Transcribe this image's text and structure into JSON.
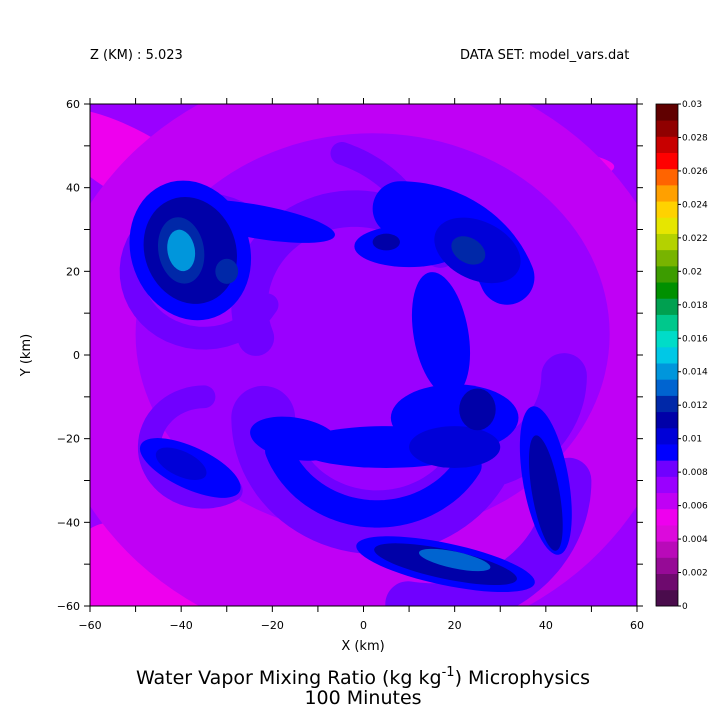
{
  "header": {
    "z_label": "Z (KM) : 5.023",
    "dataset_label": "DATA SET: model_vars.dat"
  },
  "chart_data": {
    "type": "heatmap",
    "title": "Water Vapor Mixing Ratio (kg kg",
    "title_exponent": "-1",
    "title_suffix": ") Microphysics",
    "subtitle": "100 Minutes",
    "xlabel": "X (km)",
    "ylabel": "Y (km)",
    "xlim": [
      -60,
      60
    ],
    "ylim": [
      -60,
      60
    ],
    "x_ticks": [
      -60,
      -40,
      -20,
      0,
      20,
      40,
      60
    ],
    "y_ticks": [
      -60,
      -40,
      -20,
      0,
      20,
      40,
      60
    ],
    "x_tick_labels": [
      "−60",
      "−40",
      "−20",
      "0",
      "20",
      "40",
      "60"
    ],
    "y_tick_labels": [
      "−60",
      "−40",
      "−20",
      "0",
      "20",
      "40",
      "60"
    ],
    "colorbar": {
      "min": 0,
      "max": 0.03,
      "step": 0.001,
      "tick_labels": [
        "0",
        "0.002",
        "0.004",
        "0.006",
        "0.008",
        "0.01",
        "0.012",
        "0.014",
        "0.016",
        "0.018",
        "0.02",
        "0.022",
        "0.024",
        "0.026",
        "0.028",
        "0.03"
      ],
      "colors": [
        "#4a0c4c",
        "#6e0a6e",
        "#960a96",
        "#b90ab9",
        "#dc0adc",
        "#ee00ee",
        "#c000f5",
        "#9a00ff",
        "#7000ff",
        "#0000ff",
        "#0000d8",
        "#0000a8",
        "#0028a8",
        "#0064d0",
        "#0096dc",
        "#00c8e6",
        "#00dcc8",
        "#00c88c",
        "#00a050",
        "#009000",
        "#3c9c00",
        "#78b400",
        "#b4d200",
        "#e6e600",
        "#ffd200",
        "#ffa000",
        "#ff6400",
        "#ff0000",
        "#c80000",
        "#900000",
        "#600000"
      ]
    },
    "features": [
      {
        "type": "ellipse",
        "cx": 0,
        "cy": 0,
        "rx": 70,
        "ry": 70,
        "rot": 0,
        "value": 0.006
      },
      {
        "type": "ellipse",
        "cx": 2,
        "cy": 5,
        "rx": 52,
        "ry": 48,
        "rot": 0,
        "value": 0.007
      },
      {
        "type": "ellipse",
        "cx": -8,
        "cy": 5,
        "rx": 36,
        "ry": 33,
        "rot": 20,
        "value": 0.0077
      },
      {
        "type": "ellipse",
        "cx": 10,
        "cy": 45,
        "rx": 45,
        "ry": 6,
        "rot": 0,
        "value": 0.0055
      },
      {
        "type": "ellipse",
        "cx": -50,
        "cy": 45,
        "rx": 22,
        "ry": 8,
        "rot": -30,
        "value": 0.0052
      },
      {
        "type": "ellipse",
        "cx": -30,
        "cy": -52,
        "rx": 45,
        "ry": 8,
        "rot": 10,
        "value": 0.0055
      },
      {
        "type": "ellipse",
        "cx": -55,
        "cy": -47,
        "rx": 8,
        "ry": 7,
        "rot": 0,
        "value": 0.0055
      },
      {
        "type": "ellipse",
        "cx": -52,
        "cy": 15,
        "rx": 3,
        "ry": 11,
        "rot": 5,
        "value": 0.0045
      },
      {
        "type": "ellipse",
        "cx": -52,
        "cy": 15,
        "rx": 6,
        "ry": 15,
        "rot": 5,
        "value": 0.0053
      },
      {
        "type": "ellipse",
        "cx": -10,
        "cy": 10,
        "rx": 22,
        "ry": 14,
        "rot": -30,
        "value": 0.0055
      },
      {
        "type": "ellipse",
        "cx": 40,
        "cy": 2,
        "rx": 7,
        "ry": 4,
        "rot": -35,
        "value": 0.0055
      },
      {
        "type": "ellipse",
        "cx": 28,
        "cy": -37,
        "rx": 10,
        "ry": 4,
        "rot": 15,
        "value": 0.0055
      },
      {
        "type": "ellipse",
        "cx": 30,
        "cy": 40,
        "rx": 25,
        "ry": 6,
        "rot": 0,
        "value": 0.0058
      },
      {
        "type": "ellipse",
        "cx": -38,
        "cy": 25,
        "rx": 13,
        "ry": 17,
        "rot": 20,
        "value": 0.009
      },
      {
        "type": "ellipse",
        "cx": -38,
        "cy": 25,
        "rx": 10,
        "ry": 13,
        "rot": 20,
        "value": 0.011
      },
      {
        "type": "ellipse",
        "cx": -40,
        "cy": 25,
        "rx": 3,
        "ry": 5,
        "rot": 10,
        "value": 0.014
      },
      {
        "type": "ellipse",
        "cx": -40,
        "cy": 25,
        "rx": 5,
        "ry": 8,
        "rot": 10,
        "value": 0.0125
      },
      {
        "type": "ellipse",
        "cx": -30,
        "cy": 20,
        "rx": 2.5,
        "ry": 3,
        "rot": 0,
        "value": 0.012
      },
      {
        "type": "ellipse",
        "cx": -24,
        "cy": 32,
        "rx": 18,
        "ry": 4,
        "rot": -10,
        "value": 0.009
      },
      {
        "type": "ellipse",
        "cx": 10,
        "cy": 26,
        "rx": 12,
        "ry": 5,
        "rot": 0,
        "value": 0.0092
      },
      {
        "type": "ellipse",
        "cx": 25,
        "cy": 25,
        "rx": 10,
        "ry": 7,
        "rot": -25,
        "value": 0.01
      },
      {
        "type": "ellipse",
        "cx": 23,
        "cy": 25,
        "rx": 4,
        "ry": 3,
        "rot": -30,
        "value": 0.0125
      },
      {
        "type": "ellipse",
        "cx": 5,
        "cy": 27,
        "rx": 3,
        "ry": 2,
        "rot": 0,
        "value": 0.0115
      },
      {
        "type": "ellipse",
        "cx": 17,
        "cy": 5,
        "rx": 6,
        "ry": 15,
        "rot": 10,
        "value": 0.009
      },
      {
        "type": "ellipse",
        "cx": 20,
        "cy": -15,
        "rx": 14,
        "ry": 8,
        "rot": 0,
        "value": 0.009
      },
      {
        "type": "ellipse",
        "cx": 5,
        "cy": -22,
        "rx": 20,
        "ry": 5,
        "rot": 0,
        "value": 0.0095
      },
      {
        "type": "ellipse",
        "cx": -15,
        "cy": -20,
        "rx": 10,
        "ry": 5,
        "rot": -10,
        "value": 0.009
      },
      {
        "type": "ellipse",
        "cx": 20,
        "cy": -22,
        "rx": 10,
        "ry": 5,
        "rot": 0,
        "value": 0.01
      },
      {
        "type": "ellipse",
        "cx": 25,
        "cy": -13,
        "rx": 4,
        "ry": 5,
        "rot": 0,
        "value": 0.011
      },
      {
        "type": "ellipse",
        "cx": -38,
        "cy": -27,
        "rx": 12,
        "ry": 5,
        "rot": -25,
        "value": 0.009
      },
      {
        "type": "ellipse",
        "cx": -40,
        "cy": -26,
        "rx": 6,
        "ry": 3,
        "rot": -25,
        "value": 0.0105
      },
      {
        "type": "ellipse",
        "cx": 40,
        "cy": -30,
        "rx": 5,
        "ry": 18,
        "rot": 10,
        "value": 0.009
      },
      {
        "type": "ellipse",
        "cx": 40,
        "cy": -33,
        "rx": 3,
        "ry": 14,
        "rot": 10,
        "value": 0.011
      },
      {
        "type": "ellipse",
        "cx": 18,
        "cy": -50,
        "rx": 20,
        "ry": 5,
        "rot": -12,
        "value": 0.009
      },
      {
        "type": "ellipse",
        "cx": 18,
        "cy": -50,
        "rx": 16,
        "ry": 3.5,
        "rot": -12,
        "value": 0.011
      },
      {
        "type": "ellipse",
        "cx": 20,
        "cy": -49,
        "rx": 8,
        "ry": 2,
        "rot": -12,
        "value": 0.013
      }
    ],
    "arcs": [
      {
        "cx": -2,
        "cy": 12,
        "r": 23,
        "a1": 35,
        "a2": 200,
        "width": 8,
        "value": 0.008
      },
      {
        "cx": 8,
        "cy": 10,
        "r": 25,
        "a1": 20,
        "a2": 90,
        "width": 12,
        "value": 0.009
      },
      {
        "cx": 3,
        "cy": -15,
        "r": 25,
        "a1": 180,
        "a2": 330,
        "width": 14,
        "value": 0.0085
      },
      {
        "cx": 3,
        "cy": -15,
        "r": 23,
        "a1": 200,
        "a2": 330,
        "width": 6,
        "value": 0.0098
      },
      {
        "cx": -35,
        "cy": 20,
        "r": 16,
        "a1": 40,
        "a2": 330,
        "width": 5,
        "value": 0.0085
      },
      {
        "cx": 22,
        "cy": -5,
        "r": 22,
        "a1": 290,
        "a2": 360,
        "width": 10,
        "value": 0.0085
      },
      {
        "cx": 15,
        "cy": -30,
        "r": 30,
        "a1": 260,
        "a2": 360,
        "width": 10,
        "value": 0.0085
      },
      {
        "cx": -35,
        "cy": -22,
        "r": 12,
        "a1": 90,
        "a2": 300,
        "width": 5,
        "value": 0.008
      },
      {
        "cx": -15,
        "cy": 20,
        "r": 30,
        "a1": 20,
        "a2": 70,
        "width": 5,
        "value": 0.0085
      }
    ]
  }
}
